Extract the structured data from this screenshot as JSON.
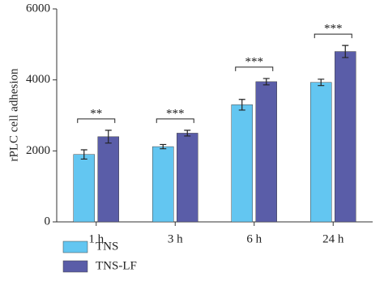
{
  "chart_data": {
    "type": "bar",
    "ylabel": "rPLC cell adhesion",
    "categories": [
      "1 h",
      "3 h",
      "6 h",
      "24 h"
    ],
    "series": [
      {
        "name": "TNS",
        "color": "#63c6f1",
        "values": [
          1900,
          2120,
          3300,
          3930
        ],
        "errors": [
          130,
          60,
          150,
          90
        ]
      },
      {
        "name": "TNS-LF",
        "color": "#5a5da8",
        "values": [
          2400,
          2500,
          3950,
          4800
        ],
        "errors": [
          180,
          80,
          90,
          170
        ]
      }
    ],
    "annotations": [
      "**",
      "***",
      "***",
      "***"
    ],
    "ylim": [
      0,
      6000
    ],
    "yticks": [
      0,
      2000,
      4000,
      6000
    ],
    "legend": "bottom-left"
  }
}
